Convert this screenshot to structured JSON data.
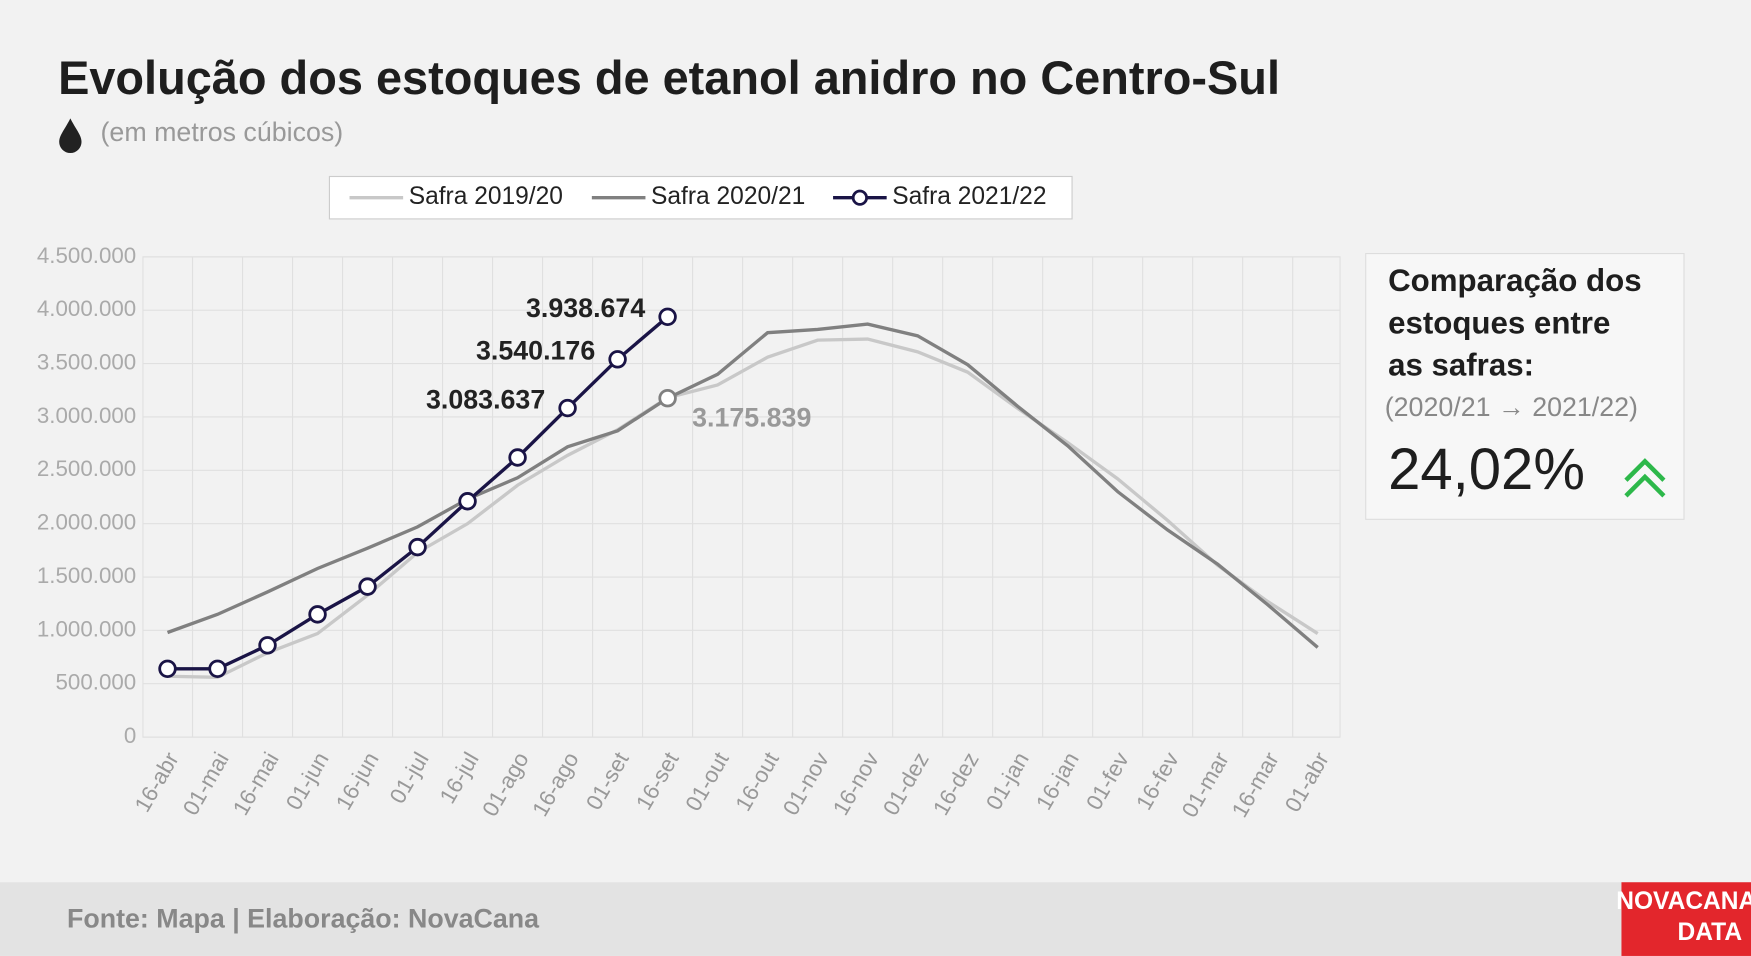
{
  "chart_data": {
    "type": "line",
    "title": "Evolução dos estoques de etanol anidro no Centro-Sul",
    "subtitle": "(em metros cúbicos)",
    "categories": [
      "16-abr",
      "01-mai",
      "16-mai",
      "01-jun",
      "16-jun",
      "01-jul",
      "16-jul",
      "01-ago",
      "16-ago",
      "01-set",
      "16-set",
      "01-out",
      "16-out",
      "01-nov",
      "16-nov",
      "01-dez",
      "16-dez",
      "01-jan",
      "16-jan",
      "01-fev",
      "16-fev",
      "01-mar",
      "16-mar",
      "01-abr"
    ],
    "series": [
      {
        "name": "Safra 2019/20",
        "color": "#c8c8c8",
        "values": [
          570000,
          560000,
          790000,
          970000,
          1330000,
          1730000,
          2000000,
          2360000,
          2640000,
          2880000,
          3180000,
          3300000,
          3560000,
          3720000,
          3730000,
          3610000,
          3420000,
          3080000,
          2760000,
          2420000,
          2030000,
          1610000,
          1270000,
          970000
        ]
      },
      {
        "name": "Safra 2020/21",
        "color": "#808080",
        "values": [
          980000,
          1150000,
          1360000,
          1580000,
          1770000,
          1970000,
          2230000,
          2430000,
          2720000,
          2870000,
          3175839,
          3400000,
          3790000,
          3820000,
          3870000,
          3760000,
          3490000,
          3100000,
          2730000,
          2300000,
          1940000,
          1620000,
          1240000,
          840000
        ],
        "value_labels": [
          null,
          null,
          null,
          null,
          null,
          null,
          null,
          null,
          null,
          null,
          "3.175.839",
          null,
          null,
          null,
          null,
          null,
          null,
          null,
          null,
          null,
          null,
          null,
          null,
          null
        ]
      },
      {
        "name": "Safra 2021/22",
        "color": "#1a1446",
        "markers": true,
        "values": [
          640000,
          640000,
          860000,
          1150000,
          1410000,
          1780000,
          2210000,
          2620000,
          3083637,
          3540176,
          3938674,
          null,
          null,
          null,
          null,
          null,
          null,
          null,
          null,
          null,
          null,
          null,
          null,
          null
        ],
        "value_labels": [
          null,
          null,
          null,
          null,
          null,
          null,
          null,
          null,
          "3.083.637",
          "3.540.176",
          "3.938.674",
          null,
          null,
          null,
          null,
          null,
          null,
          null,
          null,
          null,
          null,
          null,
          null,
          null
        ]
      }
    ],
    "ylim": [
      0,
      4500000
    ],
    "yticks": [
      0,
      {
        "value": 500000,
        "label": "500.000"
      },
      {
        "value": 1000000,
        "label": "1.000.000"
      },
      {
        "value": 1500000,
        "label": "1.500.000"
      },
      {
        "value": 2000000,
        "label": "2.000.000"
      },
      {
        "value": 2500000,
        "label": "2.500.000"
      },
      {
        "value": 3000000,
        "label": "3.000.000"
      },
      {
        "value": 3500000,
        "label": "3.500.000"
      },
      {
        "value": 4000000,
        "label": "4.000.000"
      },
      {
        "value": 4500000,
        "label": "4.500.000"
      }
    ],
    "grid": true,
    "legend": "top"
  },
  "panel": {
    "title_lines": [
      "Comparação dos",
      "estoques entre",
      "as safras:"
    ],
    "subtitle": "(2020/21 → 2021/22)",
    "value": "24,02%"
  },
  "footer": {
    "source": "Fonte: Mapa | Elaboração: NovaCana",
    "logo_top": "NOVACANA",
    "logo_bottom": "DATA"
  }
}
